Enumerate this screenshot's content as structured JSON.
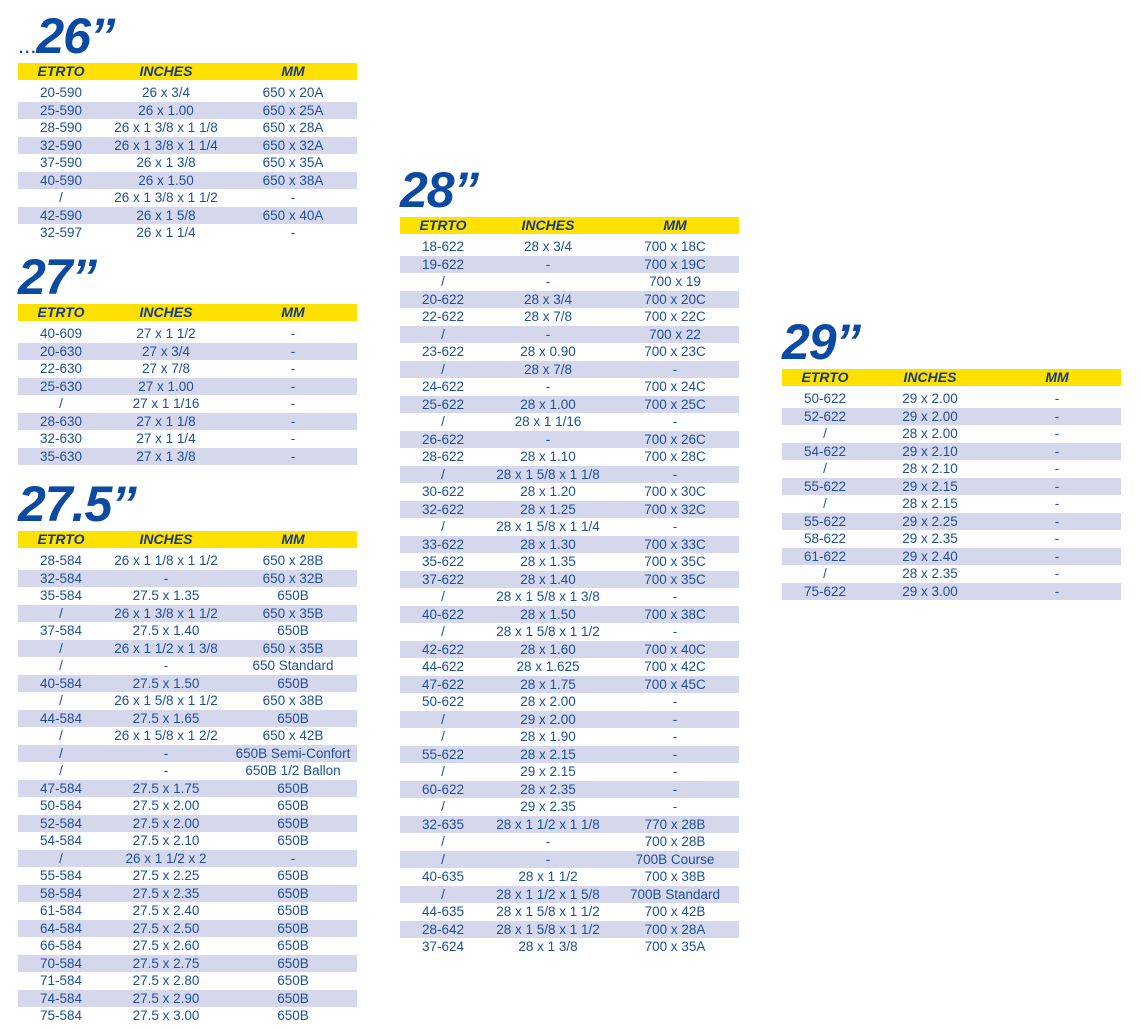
{
  "sections": [
    {
      "title_prefix": "...",
      "title": "26’’",
      "columns": [
        "ETRTO",
        "INCHES",
        "MM"
      ],
      "rows": [
        [
          "20-590",
          "26 x 3/4",
          "650 x 20A"
        ],
        [
          "25-590",
          "26 x 1.00",
          "650 x 25A"
        ],
        [
          "28-590",
          "26 x 1 3/8 x 1 1/8",
          "650 x 28A"
        ],
        [
          "32-590",
          "26 x 1 3/8 x 1 1/4",
          "650 x 32A"
        ],
        [
          "37-590",
          "26 x 1 3/8",
          "650 x 35A"
        ],
        [
          "40-590",
          "26 x 1.50",
          "650 x 38A"
        ],
        [
          "/",
          "26 x 1 3/8 x 1 1/2",
          "-"
        ],
        [
          "42-590",
          "26 x 1 5/8",
          "650 x 40A"
        ],
        [
          "32-597",
          "26 x 1 1/4",
          "-"
        ]
      ]
    },
    {
      "title": "27’’",
      "columns": [
        "ETRTO",
        "INCHES",
        "MM"
      ],
      "rows": [
        [
          "40-609",
          "27 x 1 1/2",
          "-"
        ],
        [
          "20-630",
          "27 x 3/4",
          "-"
        ],
        [
          "22-630",
          "27 x 7/8",
          "-"
        ],
        [
          "25-630",
          "27 x 1.00",
          "-"
        ],
        [
          "/",
          "27 x 1 1/16",
          "-"
        ],
        [
          "28-630",
          "27 x 1 1/8",
          "-"
        ],
        [
          "32-630",
          "27 x 1 1/4",
          "-"
        ],
        [
          "35-630",
          "27 x 1 3/8",
          "-"
        ]
      ]
    },
    {
      "title": "27.5’’",
      "columns": [
        "ETRTO",
        "INCHES",
        "MM"
      ],
      "rows": [
        [
          "28-584",
          "26 x 1 1/8 x 1 1/2",
          "650 x 28B"
        ],
        [
          "32-584",
          "-",
          "650 x 32B"
        ],
        [
          "35-584",
          "27.5 x 1.35",
          "650B"
        ],
        [
          "/",
          "26 x 1 3/8 x 1 1/2",
          "650 x 35B"
        ],
        [
          "37-584",
          "27.5 x 1.40",
          "650B"
        ],
        [
          "/",
          "26 x 1 1/2 x 1 3/8",
          "650 x 35B"
        ],
        [
          "/",
          "-",
          "650 Standard"
        ],
        [
          "40-584",
          "27.5 x 1.50",
          "650B"
        ],
        [
          "/",
          "26 x 1 5/8 x 1 1/2",
          "650 x 38B"
        ],
        [
          "44-584",
          "27.5 x 1.65",
          "650B"
        ],
        [
          "/",
          "26 x 1 5/8 x 1 2/2",
          "650 x 42B"
        ],
        [
          "/",
          "-",
          "650B Semi-Confort"
        ],
        [
          "/",
          "-",
          "650B 1/2 Ballon"
        ],
        [
          "47-584",
          "27.5 x 1.75",
          "650B"
        ],
        [
          "50-584",
          "27.5 x 2.00",
          "650B"
        ],
        [
          "52-584",
          "27.5 x 2.00",
          "650B"
        ],
        [
          "54-584",
          "27.5 x 2.10",
          "650B"
        ],
        [
          "/",
          "26 x 1 1/2 x 2",
          "-"
        ],
        [
          "55-584",
          "27.5 x 2.25",
          "650B"
        ],
        [
          "58-584",
          "27.5 x 2.35",
          "650B"
        ],
        [
          "61-584",
          "27.5 x 2.40",
          "650B"
        ],
        [
          "64-584",
          "27.5 x 2.50",
          "650B"
        ],
        [
          "66-584",
          "27.5 x 2.60",
          "650B"
        ],
        [
          "70-584",
          "27.5 x 2.75",
          "650B"
        ],
        [
          "71-584",
          "27.5 x 2.80",
          "650B"
        ],
        [
          "74-584",
          "27.5 x 2.90",
          "650B"
        ],
        [
          "75-584",
          "27.5 x 3.00",
          "650B"
        ]
      ]
    },
    {
      "title": "28’’",
      "columns": [
        "ETRTO",
        "INCHES",
        "MM"
      ],
      "rows": [
        [
          "18-622",
          "28 x 3/4",
          "700 x 18C"
        ],
        [
          "19-622",
          "-",
          "700 x 19C"
        ],
        [
          "/",
          "-",
          "700 x 19"
        ],
        [
          "20-622",
          "28 x 3/4",
          "700 x 20C"
        ],
        [
          "22-622",
          "28 x 7/8",
          "700 x 22C"
        ],
        [
          "/",
          "-",
          "700 x 22"
        ],
        [
          "23-622",
          "28 x 0.90",
          "700 x 23C"
        ],
        [
          "/",
          "28 x 7/8",
          "-"
        ],
        [
          "24-622",
          "-",
          "700 x 24C"
        ],
        [
          "25-622",
          "28 x 1.00",
          "700 x 25C"
        ],
        [
          "/",
          "28 x 1 1/16",
          "-"
        ],
        [
          "26-622",
          "-",
          "700 x 26C"
        ],
        [
          "28-622",
          "28 x 1.10",
          "700 x 28C"
        ],
        [
          "/",
          "28 x 1 5/8 x 1 1/8",
          "-"
        ],
        [
          "30-622",
          "28 x 1.20",
          "700 x 30C"
        ],
        [
          "32-622",
          "28 x 1.25",
          "700 x 32C"
        ],
        [
          "/",
          "28 x 1 5/8 x 1 1/4",
          "-"
        ],
        [
          "33-622",
          "28 x 1.30",
          "700 x 33C"
        ],
        [
          "35-622",
          "28 x 1.35",
          "700 x 35C"
        ],
        [
          "37-622",
          "28 x 1.40",
          "700 x 35C"
        ],
        [
          "/",
          "28 x 1 5/8 x 1 3/8",
          "-"
        ],
        [
          "40-622",
          "28 x 1.50",
          "700 x 38C"
        ],
        [
          "/",
          "28 x 1 5/8 x 1 1/2",
          "-"
        ],
        [
          "42-622",
          "28 x 1.60",
          "700 x 40C"
        ],
        [
          "44-622",
          "28 x 1.625",
          "700 x 42C"
        ],
        [
          "47-622",
          "28 x 1.75",
          "700 x 45C"
        ],
        [
          "50-622",
          "28 x 2.00",
          "-"
        ],
        [
          "/",
          "29 x 2.00",
          "-"
        ],
        [
          "/",
          "28 x 1.90",
          "-"
        ],
        [
          "55-622",
          "28 x 2.15",
          "-"
        ],
        [
          "/",
          "29 x 2.15",
          "-"
        ],
        [
          "60-622",
          "28 x 2.35",
          "-"
        ],
        [
          "/",
          "29 x 2.35",
          "-"
        ],
        [
          "32-635",
          "28 x 1 1/2 x 1 1/8",
          "770 x 28B"
        ],
        [
          "/",
          "-",
          "700 x 28B"
        ],
        [
          "/",
          "-",
          "700B Course"
        ],
        [
          "40-635",
          "28 x 1 1/2",
          "700 x 38B"
        ],
        [
          "/",
          "28 x 1 1/2 x 1 5/8",
          "700B Standard"
        ],
        [
          "44-635",
          "28 x 1 5/8 x 1 1/2",
          "700 x 42B"
        ],
        [
          "28-642",
          "28 x 1 5/8 x 1 1/2",
          "700 x 28A"
        ],
        [
          "37-624",
          "28 x 1 3/8",
          "700 x 35A"
        ]
      ]
    },
    {
      "title": "29’’",
      "columns": [
        "ETRTO",
        "INCHES",
        "MM"
      ],
      "rows": [
        [
          "50-622",
          "29 x 2.00",
          "-"
        ],
        [
          "52-622",
          "29 x 2.00",
          "-"
        ],
        [
          "/",
          "28 x 2.00",
          "-"
        ],
        [
          "54-622",
          "29 x 2.10",
          "-"
        ],
        [
          "/",
          "28 x 2.10",
          "-"
        ],
        [
          "55-622",
          "29 x 2.15",
          "-"
        ],
        [
          "/",
          "28 x 2.15",
          "-"
        ],
        [
          "55-622",
          "29 x 2.25",
          "-"
        ],
        [
          "58-622",
          "29 x 2.35",
          "-"
        ],
        [
          "61-622",
          "29 x 2.40",
          "-"
        ],
        [
          "/",
          "28 x 2.35",
          "-"
        ],
        [
          "75-622",
          "29 x 3.00",
          "-"
        ]
      ]
    }
  ]
}
